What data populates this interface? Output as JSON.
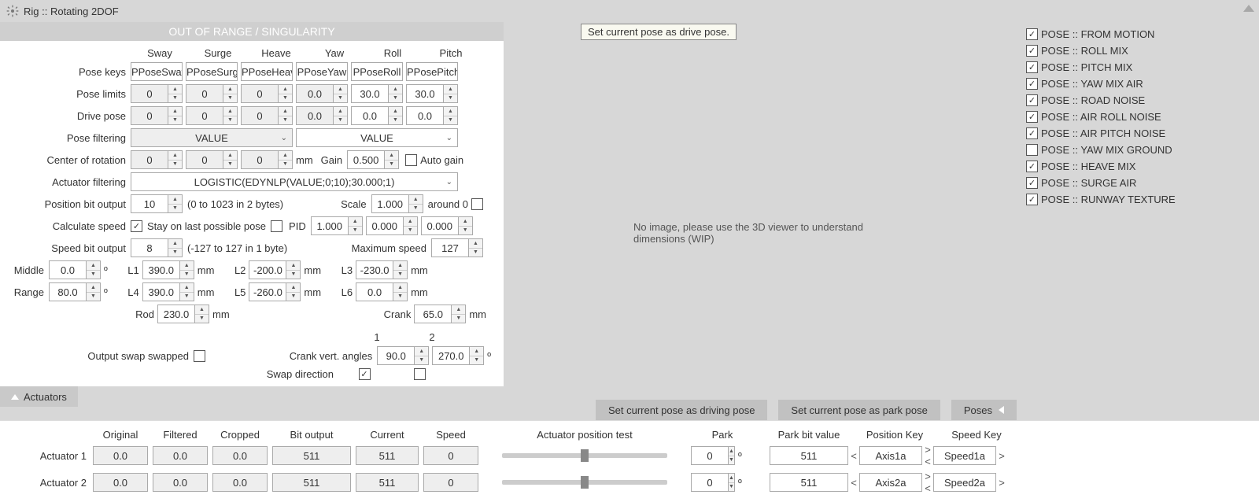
{
  "title": "Rig :: Rotating 2DOF",
  "tooltip": "Set current pose as drive pose.",
  "banner": "OUT OF RANGE / SINGULARITY",
  "cols": [
    "Sway",
    "Surge",
    "Heave",
    "Yaw",
    "Roll",
    "Pitch"
  ],
  "labels": {
    "pose_keys": "Pose keys",
    "pose_limits": "Pose limits",
    "drive_pose": "Drive pose",
    "pose_filtering": "Pose filtering",
    "center_rot": "Center of rotation",
    "actuator_filtering": "Actuator filtering",
    "pos_bit": "Position bit output",
    "calc_speed": "Calculate speed",
    "stay_last": "Stay on last possible pose",
    "pid": "PID",
    "speed_bit": "Speed bit output",
    "max_speed": "Maximum speed",
    "middle": "Middle",
    "range": "Range",
    "rod": "Rod",
    "crank": "Crank",
    "out_swap": "Output swap swapped",
    "crank_ang": "Crank vert. angles",
    "swap_dir": "Swap direction",
    "gain": "Gain",
    "auto_gain": "Auto gain",
    "scale": "Scale",
    "around0": "around 0",
    "mm": "mm",
    "deg": "º",
    "L1": "L1",
    "L2": "L2",
    "L3": "L3",
    "L4": "L4",
    "L5": "L5",
    "L6": "L6",
    "one": "1",
    "two": "2"
  },
  "pose_keys": [
    "PPoseSway",
    "PPoseSurge",
    "PPoseHeave",
    "PPoseYaw",
    "PPoseRoll",
    "PPosePitch"
  ],
  "pose_limits": [
    "0",
    "0",
    "0",
    "0.0",
    "30.0",
    "30.0"
  ],
  "drive_pose": [
    "0",
    "0",
    "0",
    "0.0",
    "0.0",
    "0.0"
  ],
  "pose_filter_a": "VALUE",
  "pose_filter_b": "VALUE",
  "center_rot": [
    "0",
    "0",
    "0"
  ],
  "gain": "0.500",
  "actuator_filter": "LOGISTIC(EDYNLP(VALUE;0;10);30.000;1)",
  "pos_bit": "10",
  "pos_bit_note": "(0 to 1023 in 2 bytes)",
  "scale": "1.000",
  "pid_vals": [
    "1.000",
    "0.000",
    "0.000"
  ],
  "speed_bit": "8",
  "speed_bit_note": "(-127 to 127 in 1 byte)",
  "max_speed": "127",
  "middle": "0.0",
  "range": "80.0",
  "L": {
    "L1": "390.0",
    "L2": "-200.0",
    "L3": "-230.0",
    "L4": "390.0",
    "L5": "-260.0",
    "L6": "0.0"
  },
  "rod": "230.0",
  "crank": "65.0",
  "crank_ang": [
    "90.0",
    "270.0"
  ],
  "noimg": "No image, please use the 3D viewer to understand dimensions (WIP)",
  "right_list": [
    {
      "label": "POSE :: FROM MOTION",
      "checked": true
    },
    {
      "label": "POSE :: ROLL MIX",
      "checked": true
    },
    {
      "label": "POSE :: PITCH MIX",
      "checked": true
    },
    {
      "label": "POSE :: YAW MIX AIR",
      "checked": true
    },
    {
      "label": "POSE :: ROAD NOISE",
      "checked": true
    },
    {
      "label": "POSE :: AIR ROLL NOISE",
      "checked": true
    },
    {
      "label": "POSE :: AIR PITCH NOISE",
      "checked": true
    },
    {
      "label": "POSE :: YAW MIX GROUND",
      "checked": false
    },
    {
      "label": "POSE :: HEAVE MIX",
      "checked": true
    },
    {
      "label": "POSE :: SURGE AIR",
      "checked": true
    },
    {
      "label": "POSE :: RUNWAY TEXTURE",
      "checked": true
    }
  ],
  "tab_actuators": "Actuators",
  "btns": {
    "drive": "Set current pose as driving pose",
    "park": "Set current pose as park pose",
    "poses": "Poses"
  },
  "table": {
    "hdr": [
      "Original",
      "Filtered",
      "Cropped",
      "Bit output",
      "Current",
      "Speed"
    ],
    "hdr2": {
      "aptest": "Actuator position test",
      "park": "Park",
      "parkbit": "Park bit value",
      "poskey": "Position Key",
      "speedkey": "Speed Key"
    },
    "rows": [
      {
        "name": "Actuator 1",
        "v": [
          "0.0",
          "0.0",
          "0.0",
          "511",
          "511",
          "0"
        ],
        "park": "0",
        "parkbit": "511",
        "poskey": "Axis1a",
        "speedkey": "Speed1a"
      },
      {
        "name": "Actuator 2",
        "v": [
          "0.0",
          "0.0",
          "0.0",
          "511",
          "511",
          "0"
        ],
        "park": "0",
        "parkbit": "511",
        "poskey": "Axis2a",
        "speedkey": "Speed2a"
      }
    ]
  }
}
